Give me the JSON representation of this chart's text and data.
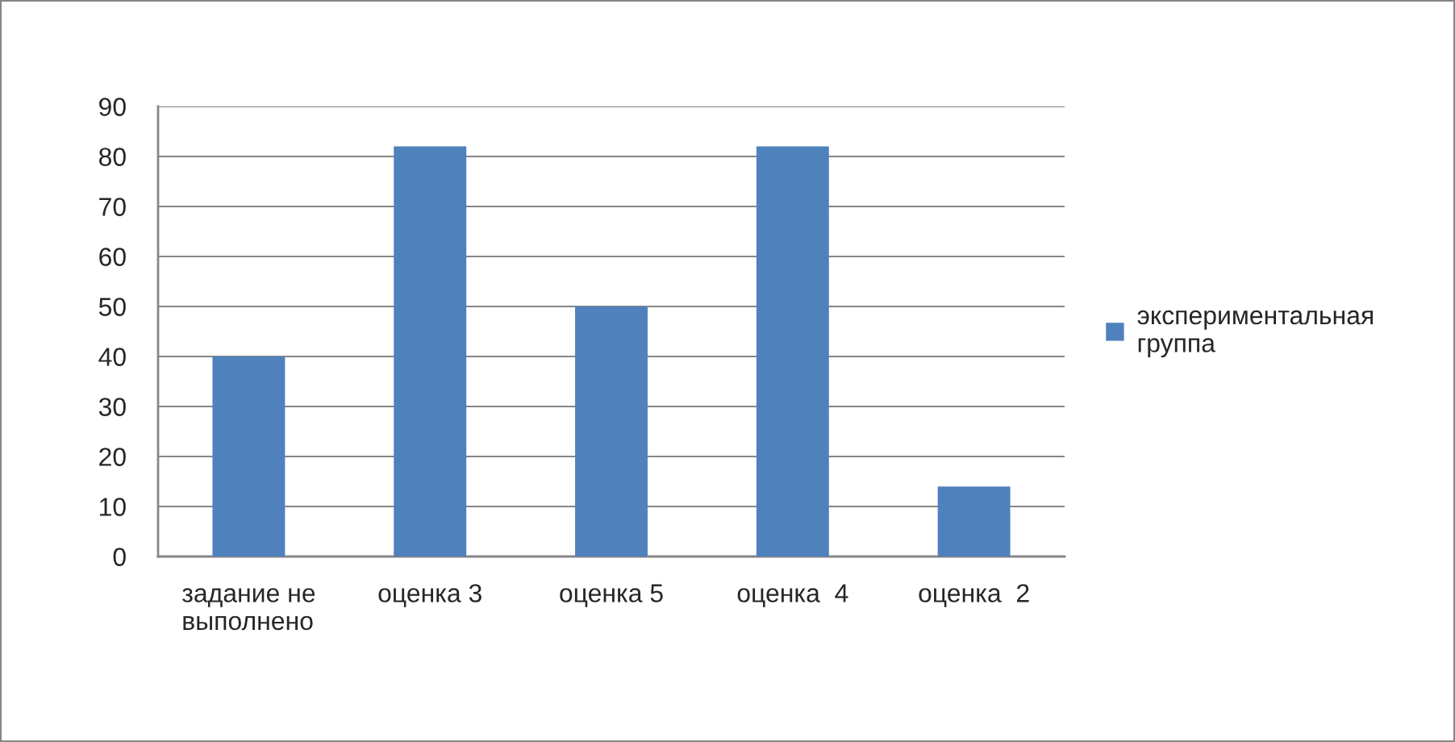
{
  "chart_data": {
    "type": "bar",
    "categories": [
      "задание не\nвыполнено",
      "оценка 3",
      "оценка 5",
      "оценка  4",
      "оценка  2"
    ],
    "series": [
      {
        "name": "экспериментальная\nгруппа",
        "color": "#4f81bd",
        "values": [
          40,
          82,
          50,
          82,
          14
        ]
      }
    ],
    "ylim": [
      0,
      90
    ],
    "yticks": [
      0,
      10,
      20,
      30,
      40,
      50,
      60,
      70,
      80,
      90
    ],
    "grid": "y",
    "legend": "right"
  }
}
